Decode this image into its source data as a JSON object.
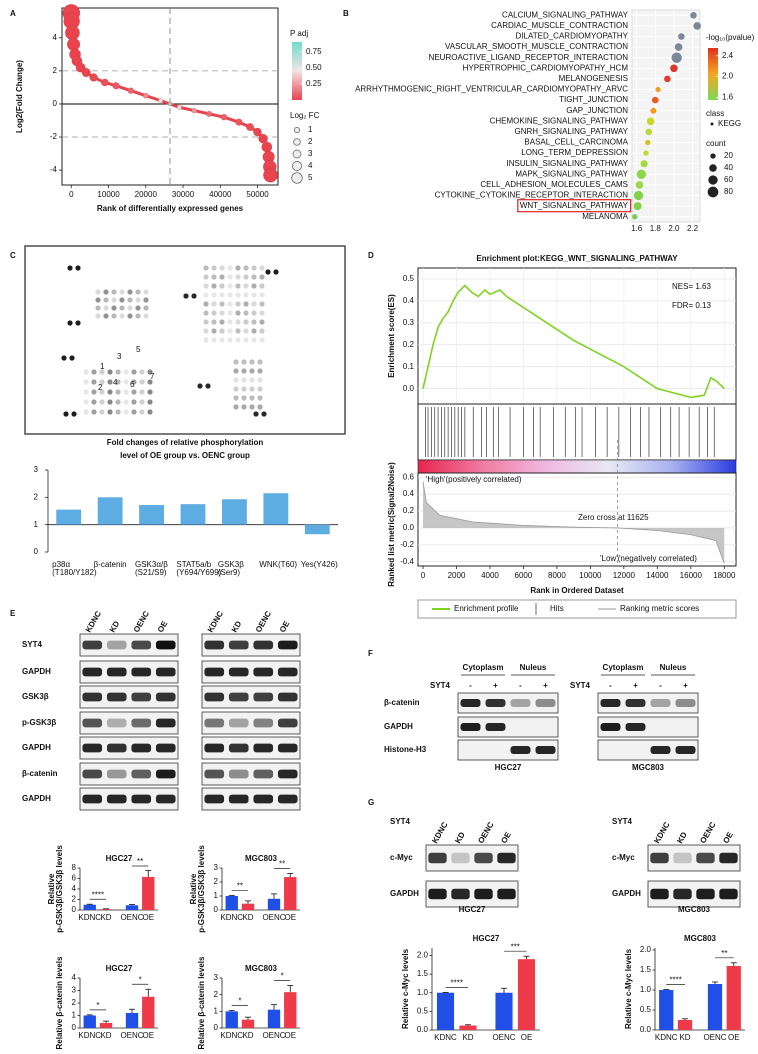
{
  "panel_labels": [
    "A",
    "B",
    "C",
    "D",
    "E",
    "F",
    "G"
  ],
  "chart_data": [
    {
      "type": "scatter",
      "xlabel": "Rank of differentially expressed genes",
      "ylabel": "Log2(Fold Change)",
      "x": [
        0,
        100,
        300,
        600,
        1000,
        1500,
        2500,
        4000,
        6000,
        9000,
        12000,
        16000,
        20000,
        24000,
        26500,
        29000,
        33000,
        37000,
        41000,
        45000,
        48000,
        50000,
        51500,
        52500,
        53000,
        53300,
        53500
      ],
      "y": [
        5.5,
        5.0,
        4.3,
        3.6,
        3.0,
        2.6,
        2.2,
        1.9,
        1.6,
        1.3,
        1.1,
        0.8,
        0.5,
        0.2,
        0,
        -0.2,
        -0.4,
        -0.6,
        -0.8,
        -1.1,
        -1.4,
        -1.7,
        -2.1,
        -2.6,
        -3.2,
        -3.8,
        -4.3
      ],
      "padj": [
        0,
        0,
        0,
        0,
        0,
        0,
        0,
        0.01,
        0.02,
        0.04,
        0.06,
        0.1,
        0.2,
        0.45,
        0.8,
        0.5,
        0.25,
        0.12,
        0.08,
        0.05,
        0.03,
        0.01,
        0,
        0,
        0,
        0,
        0
      ],
      "xlim": [
        -2500,
        55500
      ],
      "xticks": [
        0,
        10000,
        20000,
        30000,
        40000,
        50000
      ],
      "ylim": [
        -4.9,
        5.8
      ],
      "yticks": [
        -4,
        -2,
        0,
        2,
        4
      ],
      "hlines": [
        2,
        -2
      ],
      "vlines": [
        26500
      ],
      "zero_line": true,
      "color_legend": {
        "title": "P adj",
        "colors": [
          "#e8434f",
          "#f2e4e4",
          "#6fdccc"
        ],
        "lim": [
          0,
          0.9
        ],
        "ticks": [
          0.75,
          {
            "value": 0.5,
            "label": "0.50"
          },
          0.25
        ]
      },
      "size_legend": {
        "title": "Log₂ FC",
        "values": [
          1,
          2,
          3,
          4,
          5
        ]
      }
    },
    {
      "type": "dotplot",
      "categories": [
        "CALCIUM_SIGNALING_PATHWAY",
        "CARDIAC_MUSCLE_CONTRACTION",
        "DILATED_CARDIOMYOPATHY",
        "VASCULAR_SMOOTH_MUSCLE_CONTRACTION",
        "NEUROACTIVE_LIGAND_RECEPTOR_INTERACTION",
        "HYPERTROPHIC_CARDIOMYOPATHY_HCM",
        "MELANOGENESIS",
        "ARRHYTHMOGENIC_RIGHT_VENTRICULAR_CARDIOMYOPATHY_ARVC",
        "TIGHT_JUNCTION",
        "GAP_JUNCTION",
        "CHEMOKINE_SIGNALING_PATHWAY",
        "GNRH_SIGNALING_PATHWAY",
        "BASAL_CELL_CARCINOMA",
        "LONG_TERM_DEPRESSION",
        "INSULIN_SIGNALING_PATHWAY",
        "MAPK_SIGNALING_PATHWAY",
        "CELL_ADHESION_MOLECULES_CAMS",
        "CYTOKINE_CYTOKINE_RECEPTOR_INTERACTION",
        "WNT_SIGNALING_PATHWAY",
        "MELANOMA"
      ],
      "values": [
        2.21,
        2.25,
        2.08,
        2.05,
        2.03,
        2.0,
        1.93,
        1.83,
        1.8,
        1.78,
        1.75,
        1.73,
        1.72,
        1.7,
        1.68,
        1.65,
        1.63,
        1.62,
        1.61,
        1.58
      ],
      "counts": [
        30,
        40,
        30,
        40,
        75,
        40,
        30,
        20,
        30,
        25,
        40,
        30,
        20,
        20,
        35,
        60,
        40,
        60,
        45,
        20
      ],
      "colors": [
        "#7a8899",
        "#7a8899",
        "#7a8899",
        "#7a8899",
        "#7a8899",
        "#d93a2b",
        "#e03a2a",
        "#f0a020",
        "#e85a20",
        "#f39c1f",
        "#c8d82a",
        "#b6d838",
        "#d8c020",
        "#c0d830",
        "#a8d840",
        "#8cd64a",
        "#9ad848",
        "#80d44c",
        "#80d44c",
        "#7ad04e"
      ],
      "highlight_index": 18,
      "xlim": [
        1.55,
        2.28
      ],
      "xticks": [
        1.6,
        1.8,
        {
          "value": 2,
          "label": "2.0"
        },
        2.2
      ],
      "color_legend": {
        "title": "-log₁₀(pvalue)",
        "colors": [
          "#7ed957",
          "#f5a623",
          "#e0301e"
        ],
        "lim": [
          1.55,
          2.55
        ],
        "ticks": [
          2.4,
          {
            "value": 2,
            "label": "2.0"
          },
          1.6
        ]
      },
      "class_legend": {
        "title": "class",
        "items": [
          "KEGG"
        ]
      },
      "size_legend": {
        "title": "count",
        "values": [
          20,
          40,
          60,
          80
        ]
      }
    },
    {
      "type": "bar",
      "title": [
        "Fold changes of  relative phosphorylation",
        "level of OE group vs. OENC group"
      ],
      "categories": [
        [
          "p38α",
          "(T180/Y182)"
        ],
        [
          "β-catenin"
        ],
        [
          "GSK3α/β",
          "(S21/S9)"
        ],
        [
          "STAT5a/b",
          "(Y694/Y699)"
        ],
        [
          "GSK3β",
          "(Ser9)"
        ],
        [
          "WNK(T60)"
        ],
        [
          "Yes(Y426)"
        ]
      ],
      "values": [
        1.55,
        2.0,
        1.72,
        1.75,
        1.93,
        2.15,
        0.65
      ],
      "color": "#5dade2",
      "ylim": [
        0,
        3
      ],
      "yticks": [
        0,
        1,
        2,
        3
      ],
      "baseline": 1
    },
    {
      "type": "line",
      "title": "Enrichment plot:KEGG_WNT_SIGNALING_PATHWAY",
      "ylabel": "Enrichment score(ES)",
      "x": [
        0,
        300,
        600,
        900,
        1200,
        1500,
        1800,
        2100,
        2500,
        2900,
        3300,
        3700,
        4000,
        4600,
        5000,
        6000,
        7000,
        8000,
        9000,
        10000,
        11000,
        12000,
        13000,
        14000,
        15000,
        16000,
        16800,
        17200,
        17600,
        18000
      ],
      "values": [
        0,
        0.1,
        0.2,
        0.28,
        0.32,
        0.35,
        0.4,
        0.44,
        0.47,
        0.44,
        0.42,
        0.45,
        0.43,
        0.45,
        0.42,
        0.37,
        0.32,
        0.27,
        0.22,
        0.18,
        0.14,
        0.1,
        0.05,
        0,
        -0.02,
        -0.04,
        -0.03,
        0.05,
        0.03,
        0
      ],
      "color": "#7ed321",
      "xlim": [
        -300,
        18700
      ],
      "ylim": [
        -0.07,
        0.55
      ],
      "yticks": [
        {
          "value": 0,
          "label": "0.0"
        },
        0.1,
        0.2,
        0.3,
        0.4,
        0.5
      ],
      "grid": true,
      "annotations": [
        "NES= 1.63",
        "FDR= 0.13"
      ],
      "hits": [
        150,
        300,
        500,
        700,
        900,
        1100,
        1300,
        1500,
        1700,
        1900,
        2100,
        2300,
        2500,
        3000,
        3500,
        3800,
        4200,
        4500,
        5200,
        6000,
        6600,
        7000,
        7800,
        8500,
        9100,
        9500,
        10300,
        11000,
        11700,
        12400,
        13000,
        13500,
        14200,
        14800,
        15300,
        15900,
        16500,
        17000,
        17400
      ]
    },
    {
      "type": "area",
      "xlabel": "Rank in Ordered Dataset",
      "ylabel": "Ranked list metric(Signal2Noise)",
      "x": [
        0,
        200,
        1000,
        3000,
        6000,
        9000,
        11625,
        14000,
        16000,
        17500,
        18000
      ],
      "values": [
        0.55,
        0.3,
        0.15,
        0.07,
        0.03,
        0.01,
        0,
        -0.03,
        -0.08,
        -0.15,
        -0.42
      ],
      "color": "#b8b8b8",
      "xlim": [
        -300,
        18700
      ],
      "ylim": [
        -0.45,
        0.65
      ],
      "xticks": [
        0,
        2000,
        4000,
        6000,
        8000,
        10000,
        12000,
        14000,
        16000,
        18000
      ],
      "yticks": [
        -0.4,
        -0.2,
        {
          "value": 0,
          "label": "0.0"
        },
        0.2,
        0.4,
        0.6
      ],
      "zero_cross": 11625,
      "annotations": [
        "'High'(positively correlated)",
        "Zero cross at 11625",
        "'Low'(negatively correlated)"
      ],
      "legend": [
        "Enrichment profile",
        "Hits",
        "Ranking metric scores"
      ]
    },
    {
      "type": "bar",
      "title": "HGC27",
      "ylabel": [
        "Relative",
        "p-GSK3β/GSK3β levels"
      ],
      "categories": [
        "KDNC",
        "KD",
        "OENC",
        "OE"
      ],
      "values": [
        1.0,
        0.15,
        0.9,
        6.3
      ],
      "errors": [
        0.1,
        0.08,
        0.15,
        1.2
      ],
      "colors": [
        "#1f4fe6",
        "#ef3a4a",
        "#1f4fe6",
        "#ef3a4a"
      ],
      "ylim": [
        0,
        8
      ],
      "yticks": [
        0,
        2,
        4,
        6,
        8
      ],
      "significance": [
        "****",
        "**"
      ]
    },
    {
      "type": "bar",
      "title": "MGC803",
      "ylabel": [
        "Relative",
        "p-GSK3β/GSK3β levels"
      ],
      "categories": [
        "KDNC",
        "KD",
        "OENC",
        "OE"
      ],
      "values": [
        1.0,
        0.45,
        0.8,
        2.35
      ],
      "errors": [
        0.03,
        0.2,
        0.35,
        0.25
      ],
      "colors": [
        "#1f4fe6",
        "#ef3a4a",
        "#1f4fe6",
        "#ef3a4a"
      ],
      "ylim": [
        0,
        3
      ],
      "yticks": [
        0,
        1,
        2,
        3
      ],
      "significance": [
        "**",
        "**"
      ]
    },
    {
      "type": "bar",
      "title": "HGC27",
      "ylabel": [
        "Relative β-catenin levels"
      ],
      "categories": [
        "KDNC",
        "KD",
        "OENC",
        "OE"
      ],
      "values": [
        1.0,
        0.4,
        1.2,
        2.5
      ],
      "errors": [
        0.05,
        0.15,
        0.3,
        0.6
      ],
      "colors": [
        "#1f4fe6",
        "#ef3a4a",
        "#1f4fe6",
        "#ef3a4a"
      ],
      "ylim": [
        0,
        4
      ],
      "yticks": [
        0,
        1,
        2,
        3,
        4
      ],
      "significance": [
        "*",
        "*"
      ]
    },
    {
      "type": "bar",
      "title": "MGC803",
      "ylabel": [
        "Relative β-catenin levels"
      ],
      "categories": [
        "KDNC",
        "KD",
        "OENC",
        "OE"
      ],
      "values": [
        1.0,
        0.5,
        1.1,
        2.15
      ],
      "errors": [
        0.05,
        0.15,
        0.3,
        0.4
      ],
      "colors": [
        "#1f4fe6",
        "#ef3a4a",
        "#1f4fe6",
        "#ef3a4a"
      ],
      "ylim": [
        0,
        3
      ],
      "yticks": [
        0,
        1,
        2,
        3
      ],
      "significance": [
        "*",
        "*"
      ]
    },
    {
      "type": "bar",
      "title": "HGC27",
      "ylabel": [
        "Relative c-Myc levels"
      ],
      "categories": [
        "KDNC",
        "KD",
        "OENC",
        "OE"
      ],
      "values": [
        1.0,
        0.12,
        1.0,
        1.9
      ],
      "errors": [
        0.01,
        0.02,
        0.12,
        0.08
      ],
      "colors": [
        "#1f4fe6",
        "#ef3a4a",
        "#1f4fe6",
        "#ef3a4a"
      ],
      "ylim": [
        0,
        2.2
      ],
      "yticks": [
        {
          "value": 0,
          "label": "0.0"
        },
        0.5,
        {
          "value": 1,
          "label": "1.0"
        },
        1.5,
        {
          "value": 2,
          "label": "2.0"
        }
      ],
      "significance": [
        "****",
        "***"
      ]
    },
    {
      "type": "bar",
      "title": "MGC803",
      "ylabel": [
        "Relative c-Myc levels"
      ],
      "categories": [
        "KDNC",
        "KD",
        "OENC",
        "OE"
      ],
      "values": [
        1.0,
        0.25,
        1.15,
        1.6
      ],
      "errors": [
        0.01,
        0.03,
        0.05,
        0.08
      ],
      "colors": [
        "#1f4fe6",
        "#ef3a4a",
        "#1f4fe6",
        "#ef3a4a"
      ],
      "ylim": [
        0,
        2.05
      ],
      "yticks": [
        {
          "value": 0,
          "label": "0.0"
        },
        0.5,
        {
          "value": 1,
          "label": "1.0"
        },
        1.5,
        {
          "value": 2,
          "label": "2.0"
        }
      ],
      "significance": [
        "****",
        "**"
      ]
    }
  ],
  "blots": {
    "C": {
      "numbers": [
        "1",
        "2",
        "3",
        "4",
        "5",
        "6",
        "7"
      ]
    },
    "E": {
      "rows": [
        "SYT4",
        "GAPDH",
        "GSK3β",
        "p-GSK3β",
        "GAPDH",
        "β-catenin",
        "GAPDH"
      ],
      "lanes_left": [
        "KDNC",
        "KD",
        "OENC",
        "OE"
      ],
      "lanes_right": [
        "KDNC",
        "KD",
        "OENC",
        "OE"
      ]
    },
    "F": {
      "rows": [
        "β-catenin",
        "GAPDH",
        "Histone-H3"
      ],
      "left": {
        "groups": [
          "Cytoplasm",
          "Nuleus"
        ],
        "treatment": "SYT4",
        "signs": [
          "-",
          "+",
          "-",
          "+"
        ],
        "cell": "HGC27"
      },
      "right": {
        "groups": [
          "Cytoplasm",
          "Nuleus"
        ],
        "treatment": "SYT4",
        "signs": [
          "-",
          "+",
          "-",
          "+"
        ],
        "cell": "MGC803"
      }
    },
    "G": {
      "left": {
        "treatment": "SYT4",
        "lanes": [
          "KDNC",
          "KD",
          "OENC",
          "OE"
        ],
        "rows": [
          "c-Myc",
          "GAPDH"
        ],
        "cell": "HGC27"
      },
      "right": {
        "treatment": "SYT4",
        "lanes": [
          "KDNC",
          "KD",
          "OENC",
          "OE"
        ],
        "rows": [
          "c-Myc",
          "GAPDH"
        ],
        "cell": "MGC803"
      }
    }
  }
}
